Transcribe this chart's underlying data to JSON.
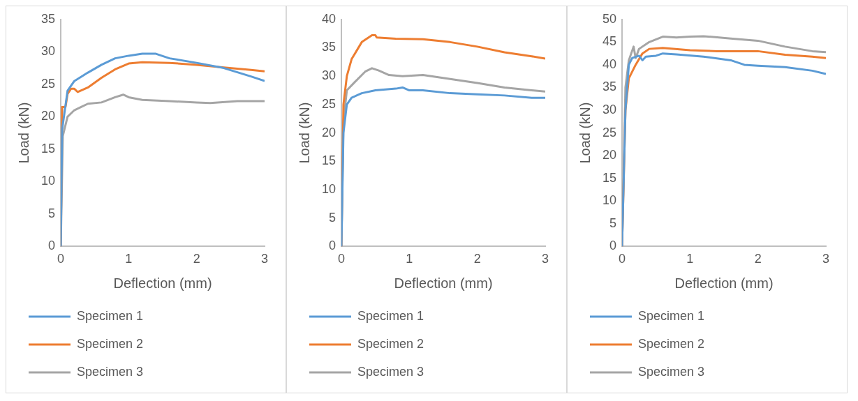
{
  "chart_data": [
    {
      "type": "line",
      "xlabel": "Deflection (mm)",
      "ylabel": "Load (kN)",
      "xlim": [
        0,
        3
      ],
      "xticks": [
        0,
        1,
        2,
        3
      ],
      "ylim": [
        0,
        35
      ],
      "yticks": [
        0,
        5,
        10,
        15,
        20,
        25,
        30,
        35
      ],
      "legend": "bottom",
      "marker": "none",
      "series": [
        {
          "name": "Specimen 1",
          "color": "#5b9bd5",
          "x": [
            0,
            0.02,
            0.1,
            0.2,
            0.4,
            0.6,
            0.8,
            1.0,
            1.2,
            1.4,
            1.6,
            2.0,
            2.4,
            2.8,
            3.0
          ],
          "values": [
            0,
            18,
            24,
            25.5,
            26.8,
            28,
            29,
            29.4,
            29.7,
            29.7,
            29,
            28.3,
            27.5,
            26.2,
            25.5
          ]
        },
        {
          "name": "Specimen 2",
          "color": "#ed7d31",
          "x": [
            0,
            0.02,
            0.07,
            0.1,
            0.15,
            0.2,
            0.25,
            0.4,
            0.6,
            0.8,
            1.0,
            1.2,
            1.6,
            2.0,
            2.4,
            2.8,
            3.0
          ],
          "values": [
            0,
            21.5,
            21.5,
            23.5,
            24.3,
            24.3,
            23.8,
            24.5,
            26,
            27.3,
            28.2,
            28.4,
            28.3,
            28,
            27.6,
            27.2,
            27
          ]
        },
        {
          "name": "Specimen 3",
          "color": "#a5a5a5",
          "x": [
            0,
            0.03,
            0.1,
            0.2,
            0.3,
            0.4,
            0.6,
            0.8,
            0.92,
            1.0,
            1.2,
            1.6,
            2.0,
            2.2,
            2.6,
            3.0
          ],
          "values": [
            0,
            17,
            20,
            21,
            21.5,
            22,
            22.2,
            23,
            23.4,
            23,
            22.6,
            22.4,
            22.2,
            22.1,
            22.4,
            22.4
          ]
        }
      ]
    },
    {
      "type": "line",
      "xlabel": "Deflection (mm)",
      "ylabel": "Load (kN)",
      "xlim": [
        0,
        3
      ],
      "xticks": [
        0,
        1,
        2,
        3
      ],
      "ylim": [
        0,
        40
      ],
      "yticks": [
        0,
        5,
        10,
        15,
        20,
        25,
        30,
        35,
        40
      ],
      "legend": "bottom",
      "marker": "none",
      "series": [
        {
          "name": "Specimen 1",
          "color": "#5b9bd5",
          "x": [
            0,
            0.03,
            0.08,
            0.15,
            0.3,
            0.5,
            0.8,
            0.9,
            1.0,
            1.2,
            1.6,
            2.0,
            2.4,
            2.8,
            3.0
          ],
          "values": [
            0,
            20,
            25,
            26.2,
            27,
            27.5,
            27.8,
            28,
            27.5,
            27.5,
            27,
            26.8,
            26.6,
            26.2,
            26.2
          ]
        },
        {
          "name": "Specimen 2",
          "color": "#ed7d31",
          "x": [
            0,
            0.03,
            0.08,
            0.15,
            0.3,
            0.45,
            0.5,
            0.52,
            0.8,
            1.2,
            1.6,
            2.0,
            2.4,
            2.8,
            3.0
          ],
          "values": [
            0,
            25,
            30,
            33,
            36,
            37.2,
            37.2,
            36.8,
            36.6,
            36.5,
            36,
            35.2,
            34.2,
            33.5,
            33.1
          ]
        },
        {
          "name": "Specimen 3",
          "color": "#a5a5a5",
          "x": [
            0,
            0.03,
            0.08,
            0.2,
            0.35,
            0.45,
            0.55,
            0.7,
            0.9,
            1.2,
            1.6,
            2.0,
            2.4,
            2.8,
            3.0
          ],
          "values": [
            0,
            22,
            27.5,
            29,
            30.8,
            31.4,
            31,
            30.2,
            30,
            30.2,
            29.5,
            28.8,
            28,
            27.5,
            27.3
          ]
        }
      ]
    },
    {
      "type": "line",
      "xlabel": "Deflection (mm)",
      "ylabel": "Load (kN)",
      "xlim": [
        0,
        3
      ],
      "xticks": [
        0,
        1,
        2,
        3
      ],
      "ylim": [
        0,
        50
      ],
      "yticks": [
        0,
        5,
        10,
        15,
        20,
        25,
        30,
        35,
        40,
        45,
        50
      ],
      "legend": "bottom",
      "marker": "none",
      "series": [
        {
          "name": "Specimen 1",
          "color": "#5b9bd5",
          "x": [
            0,
            0.05,
            0.1,
            0.15,
            0.25,
            0.3,
            0.35,
            0.5,
            0.6,
            0.8,
            1.2,
            1.6,
            1.8,
            2.0,
            2.4,
            2.8,
            3.0
          ],
          "values": [
            0,
            30,
            40,
            41.5,
            42,
            41,
            41.8,
            42,
            42.5,
            42.3,
            41.8,
            41,
            40,
            39.8,
            39.5,
            38.7,
            38
          ]
        },
        {
          "name": "Specimen 2",
          "color": "#ed7d31",
          "x": [
            0,
            0.05,
            0.1,
            0.2,
            0.3,
            0.4,
            0.6,
            1.0,
            1.4,
            1.8,
            2.0,
            2.4,
            2.8,
            3.0
          ],
          "values": [
            0,
            30,
            37,
            40,
            42.5,
            43.5,
            43.7,
            43.2,
            43,
            43,
            43,
            42.2,
            41.8,
            41.5
          ]
        },
        {
          "name": "Specimen 3",
          "color": "#a5a5a5",
          "x": [
            0,
            0.05,
            0.1,
            0.17,
            0.2,
            0.25,
            0.4,
            0.6,
            0.8,
            1.0,
            1.2,
            1.6,
            2.0,
            2.4,
            2.8,
            3.0
          ],
          "values": [
            0,
            35,
            41,
            44,
            41.5,
            43.5,
            45,
            46.2,
            46,
            46.2,
            46.3,
            45.8,
            45.3,
            44,
            43,
            42.8
          ]
        }
      ]
    }
  ]
}
